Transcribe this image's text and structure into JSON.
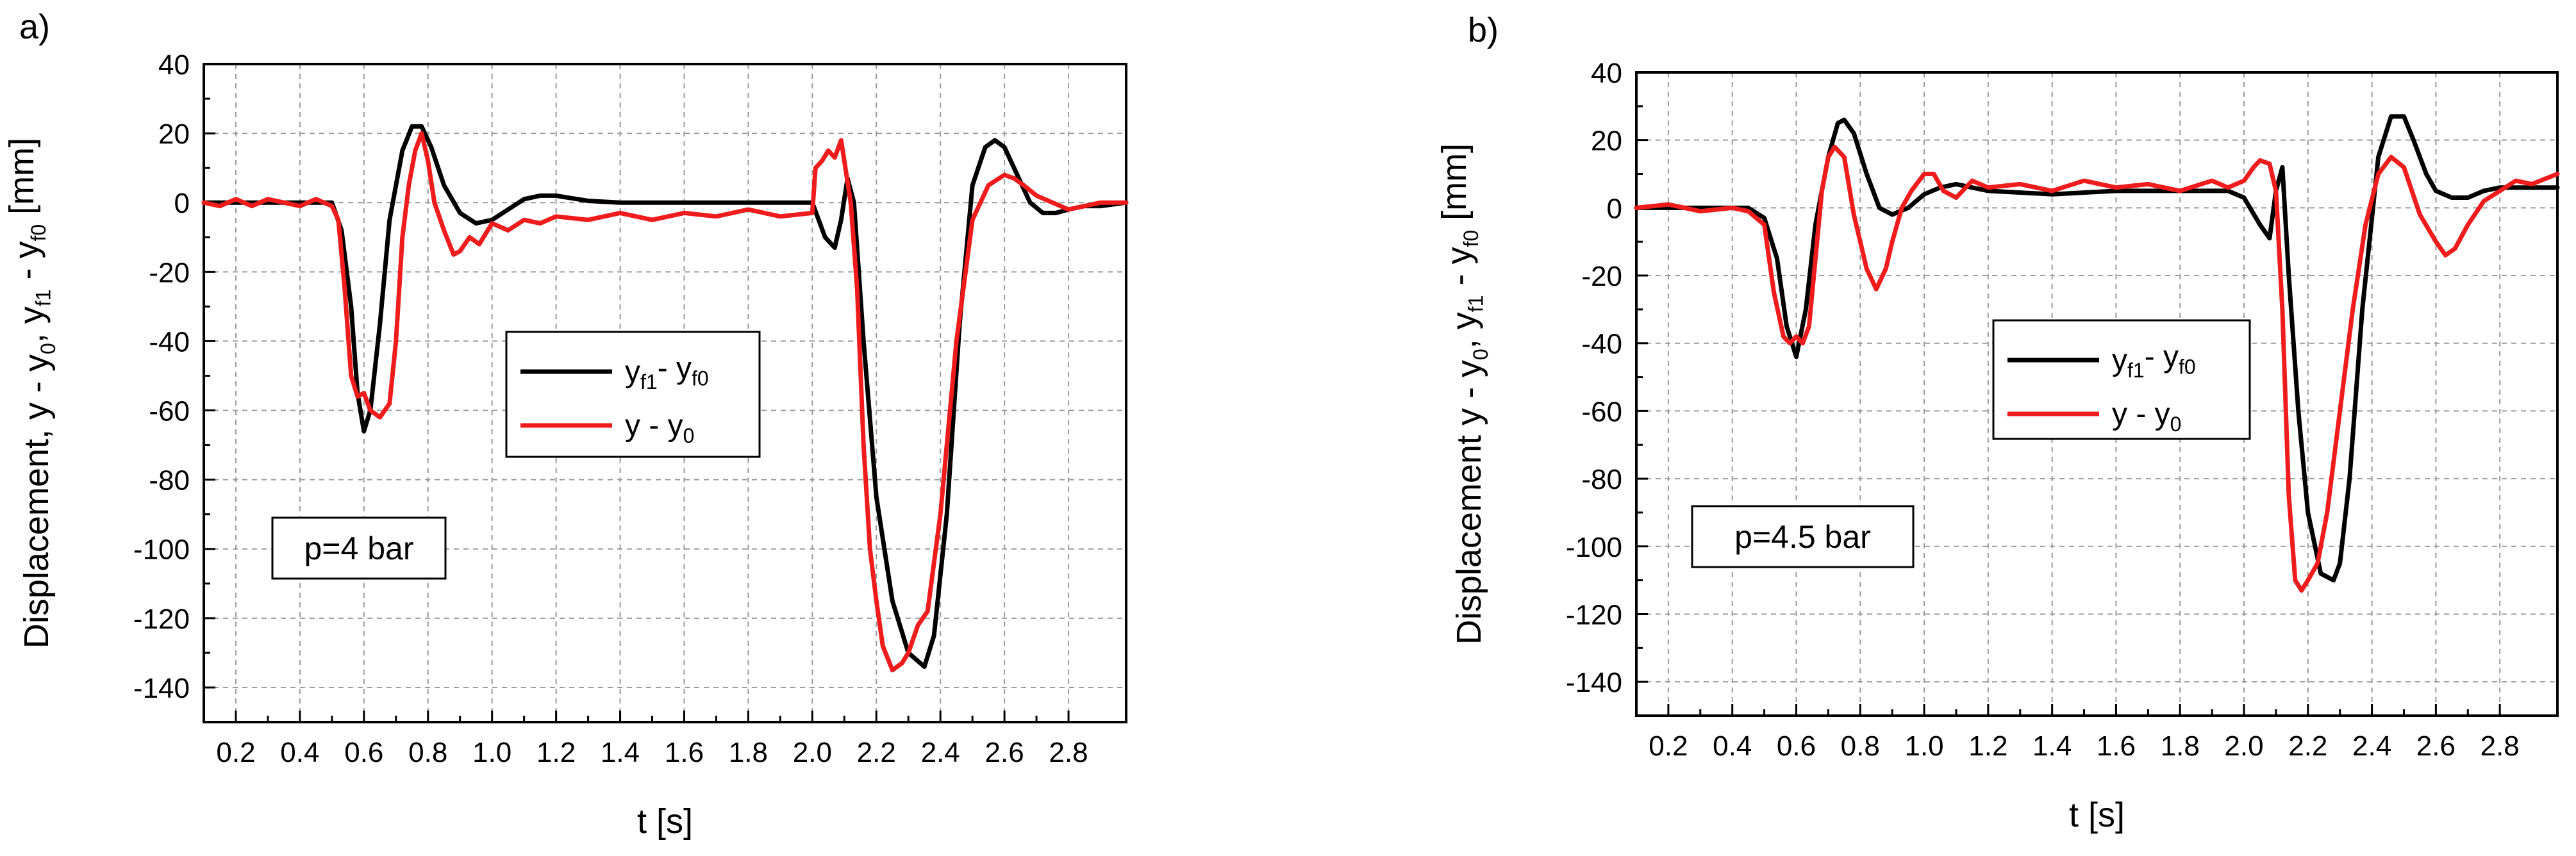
{
  "chart_data": [
    {
      "panel_label": "a)",
      "type": "line",
      "xlabel": "t [s]",
      "ylabel_parts": [
        "Displacement, y - y",
        "0",
        ", y",
        "f1",
        " - y",
        "f0",
        " [mm]"
      ],
      "xlim": [
        0.1,
        2.98
      ],
      "ylim": [
        -150,
        40
      ],
      "xticks": [
        "0.2",
        "0.4",
        "0.6",
        "0.8",
        "1.0",
        "1.2",
        "1.4",
        "1.6",
        "1.8",
        "2.0",
        "2.2",
        "2.4",
        "2.6",
        "2.8"
      ],
      "yticks": [
        "40",
        "20",
        "0",
        "-20",
        "-40",
        "-60",
        "-80",
        "-100",
        "-120",
        "-140"
      ],
      "grid": true,
      "annotation": "p=4 bar",
      "legend_placement": "center",
      "series": [
        {
          "name_parts": [
            "y",
            "f1",
            "- y",
            "f0"
          ],
          "color": "#000000",
          "x": [
            0.1,
            0.5,
            0.53,
            0.56,
            0.58,
            0.6,
            0.62,
            0.65,
            0.68,
            0.72,
            0.75,
            0.78,
            0.81,
            0.85,
            0.9,
            0.95,
            1.0,
            1.05,
            1.1,
            1.15,
            1.2,
            1.3,
            1.4,
            1.6,
            1.8,
            2.0,
            2.04,
            2.07,
            2.09,
            2.11,
            2.13,
            2.16,
            2.2,
            2.25,
            2.3,
            2.35,
            2.38,
            2.42,
            2.46,
            2.5,
            2.54,
            2.57,
            2.6,
            2.64,
            2.68,
            2.72,
            2.76,
            2.8,
            2.85,
            2.9,
            2.98
          ],
          "y": [
            0,
            0,
            -8,
            -30,
            -55,
            -66,
            -60,
            -35,
            -5,
            15,
            22,
            22,
            16,
            5,
            -3,
            -6,
            -5,
            -2,
            1,
            2,
            2,
            0.5,
            0,
            0,
            0,
            0,
            -10,
            -13,
            -5,
            7,
            0,
            -40,
            -85,
            -115,
            -130,
            -134,
            -125,
            -90,
            -35,
            5,
            16,
            18,
            16,
            8,
            0,
            -3,
            -3,
            -2,
            -1,
            -1,
            0
          ]
        },
        {
          "name_parts": [
            "y - y",
            "0"
          ],
          "color": "#ee1c1c",
          "x": [
            0.1,
            0.15,
            0.2,
            0.25,
            0.3,
            0.35,
            0.4,
            0.45,
            0.5,
            0.52,
            0.54,
            0.56,
            0.58,
            0.6,
            0.62,
            0.65,
            0.68,
            0.7,
            0.72,
            0.74,
            0.76,
            0.78,
            0.8,
            0.82,
            0.85,
            0.88,
            0.9,
            0.93,
            0.96,
            1.0,
            1.05,
            1.1,
            1.15,
            1.2,
            1.3,
            1.4,
            1.5,
            1.6,
            1.7,
            1.8,
            1.9,
            2.0,
            2.01,
            2.03,
            2.05,
            2.07,
            2.09,
            2.1,
            2.12,
            2.14,
            2.16,
            2.18,
            2.2,
            2.22,
            2.25,
            2.28,
            2.3,
            2.33,
            2.36,
            2.4,
            2.45,
            2.5,
            2.55,
            2.6,
            2.63,
            2.66,
            2.7,
            2.75,
            2.8,
            2.85,
            2.9,
            2.98
          ],
          "y": [
            0,
            -1,
            1,
            -1,
            1,
            0,
            -1,
            1,
            -1,
            -5,
            -25,
            -50,
            -56,
            -55,
            -60,
            -62,
            -58,
            -40,
            -10,
            5,
            15,
            20,
            12,
            0,
            -8,
            -15,
            -14,
            -10,
            -12,
            -6,
            -8,
            -5,
            -6,
            -4,
            -5,
            -3,
            -5,
            -3,
            -4,
            -2,
            -4,
            -3,
            10,
            12,
            15,
            13,
            18,
            12,
            0,
            -25,
            -70,
            -100,
            -115,
            -128,
            -135,
            -133,
            -130,
            -122,
            -118,
            -90,
            -40,
            -5,
            5,
            8,
            7,
            5,
            2,
            0,
            -2,
            -1,
            0,
            0
          ]
        }
      ]
    },
    {
      "panel_label": "b)",
      "type": "line",
      "xlabel": "t [s]",
      "ylabel_parts": [
        "Displacement  y - y",
        "0",
        ", y",
        "f1",
        " - y",
        "f0",
        " [mm]"
      ],
      "xlim": [
        0.1,
        2.98
      ],
      "ylim": [
        -150,
        40
      ],
      "xticks": [
        "0.2",
        "0.4",
        "0.6",
        "0.8",
        "1.0",
        "1.2",
        "1.4",
        "1.6",
        "1.8",
        "2.0",
        "2.2",
        "2.4",
        "2.6",
        "2.8"
      ],
      "yticks": [
        "40",
        "20",
        "0",
        "-20",
        "-40",
        "-60",
        "-80",
        "-100",
        "-120",
        "-140"
      ],
      "grid": true,
      "annotation": "p=4.5 bar",
      "legend_placement": "center-right",
      "series": [
        {
          "name_parts": [
            "y",
            "f1",
            "- y",
            "f0"
          ],
          "color": "#000000",
          "x": [
            0.1,
            0.45,
            0.5,
            0.54,
            0.57,
            0.6,
            0.63,
            0.66,
            0.7,
            0.73,
            0.75,
            0.78,
            0.82,
            0.86,
            0.9,
            0.95,
            1.0,
            1.05,
            1.1,
            1.2,
            1.4,
            1.6,
            1.8,
            1.95,
            2.0,
            2.05,
            2.08,
            2.1,
            2.12,
            2.14,
            2.17,
            2.2,
            2.24,
            2.28,
            2.3,
            2.33,
            2.37,
            2.42,
            2.46,
            2.5,
            2.53,
            2.57,
            2.6,
            2.65,
            2.7,
            2.75,
            2.8,
            2.9,
            2.98
          ],
          "y": [
            0,
            0,
            -3,
            -15,
            -35,
            -44,
            -30,
            -5,
            15,
            25,
            26,
            22,
            10,
            0,
            -2,
            0,
            4,
            6,
            7,
            5,
            4,
            5,
            5,
            5,
            3,
            -5,
            -9,
            5,
            12,
            -20,
            -60,
            -90,
            -108,
            -110,
            -105,
            -80,
            -30,
            15,
            27,
            27,
            20,
            10,
            5,
            3,
            3,
            5,
            6,
            6,
            6
          ]
        },
        {
          "name_parts": [
            "y - y",
            "0"
          ],
          "color": "#ee1c1c",
          "x": [
            0.1,
            0.2,
            0.3,
            0.4,
            0.45,
            0.5,
            0.53,
            0.56,
            0.58,
            0.6,
            0.62,
            0.64,
            0.66,
            0.68,
            0.7,
            0.72,
            0.75,
            0.78,
            0.8,
            0.82,
            0.85,
            0.88,
            0.9,
            0.93,
            0.96,
            1.0,
            1.03,
            1.06,
            1.1,
            1.15,
            1.2,
            1.3,
            1.4,
            1.5,
            1.6,
            1.7,
            1.8,
            1.9,
            1.95,
            2.0,
            2.03,
            2.05,
            2.08,
            2.1,
            2.12,
            2.14,
            2.16,
            2.18,
            2.2,
            2.23,
            2.26,
            2.3,
            2.34,
            2.38,
            2.42,
            2.46,
            2.5,
            2.55,
            2.6,
            2.63,
            2.66,
            2.7,
            2.75,
            2.8,
            2.85,
            2.9,
            2.98
          ],
          "y": [
            0,
            1,
            -1,
            0,
            -1,
            -5,
            -25,
            -38,
            -40,
            -38,
            -40,
            -35,
            -15,
            5,
            15,
            18,
            15,
            -2,
            -10,
            -18,
            -24,
            -18,
            -10,
            0,
            5,
            10,
            10,
            5,
            3,
            8,
            6,
            7,
            5,
            8,
            6,
            7,
            5,
            8,
            6,
            8,
            12,
            14,
            13,
            5,
            -30,
            -85,
            -110,
            -113,
            -110,
            -105,
            -90,
            -60,
            -30,
            -5,
            10,
            15,
            12,
            -2,
            -10,
            -14,
            -12,
            -5,
            2,
            5,
            8,
            7,
            10
          ]
        }
      ]
    }
  ]
}
